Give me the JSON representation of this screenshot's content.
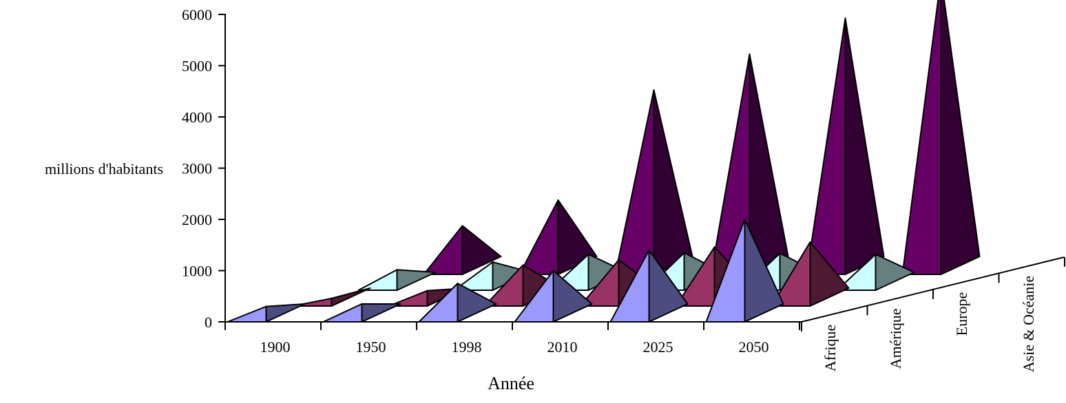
{
  "chart_data": {
    "type": "3d-pyramid",
    "categories": [
      "1900",
      "1950",
      "1998",
      "2010",
      "2025",
      "2050"
    ],
    "series": [
      {
        "name": "Afrique",
        "values": [
          300,
          350,
          750,
          1000,
          1400,
          2000
        ],
        "color_light": "#9999ff",
        "color_dark": "#4c4c80"
      },
      {
        "name": "Amérique",
        "values": [
          150,
          300,
          800,
          900,
          1150,
          1250
        ],
        "color_light": "#993366",
        "color_dark": "#4d1933"
      },
      {
        "name": "Europe",
        "values": [
          400,
          550,
          700,
          730,
          720,
          700
        ],
        "color_light": "#ccffff",
        "color_dark": "#668080"
      },
      {
        "name": "Asie & Océanie",
        "values": [
          950,
          1450,
          3600,
          4300,
          5000,
          5800
        ],
        "color_light": "#660066",
        "color_dark": "#330033"
      }
    ],
    "xlabel": "Année",
    "ylabel": "millions d'habitants",
    "ylim": [
      0,
      6000
    ],
    "yticks": [
      "0",
      "1000",
      "2000",
      "3000",
      "4000",
      "5000",
      "6000"
    ]
  }
}
